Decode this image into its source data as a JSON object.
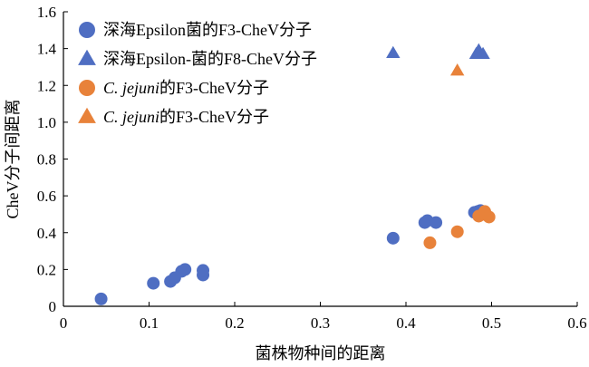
{
  "chart_data": {
    "type": "scatter",
    "xlabel": "菌株物种间的距离",
    "ylabel": "CheV分子间距离",
    "xlim": [
      0,
      0.6
    ],
    "ylim": [
      0,
      1.6
    ],
    "x_ticks": [
      "0",
      "0.1",
      "0.2",
      "0.3",
      "0.4",
      "0.5",
      "0.6"
    ],
    "y_ticks": [
      "0",
      "0.2",
      "0.4",
      "0.6",
      "0.8",
      "1.0",
      "1.2",
      "1.4",
      "1.6"
    ],
    "grid": false,
    "legend_position": "top-left",
    "series": [
      {
        "name": "深海Epsilon菌的F3-CheV分子",
        "marker": "circle",
        "color": "#4F6EC2",
        "points": [
          [
            0.044,
            0.04
          ],
          [
            0.105,
            0.125
          ],
          [
            0.125,
            0.135
          ],
          [
            0.13,
            0.155
          ],
          [
            0.138,
            0.19
          ],
          [
            0.142,
            0.2
          ],
          [
            0.163,
            0.17
          ],
          [
            0.163,
            0.195
          ],
          [
            0.385,
            0.37
          ],
          [
            0.422,
            0.455
          ],
          [
            0.425,
            0.465
          ],
          [
            0.435,
            0.455
          ],
          [
            0.48,
            0.51
          ],
          [
            0.484,
            0.515
          ],
          [
            0.487,
            0.52
          ],
          [
            0.49,
            0.505
          ],
          [
            0.492,
            0.51
          ]
        ]
      },
      {
        "name": "深海Epsilon-菌的F8-CheV分子",
        "marker": "triangle",
        "color": "#4F6EC2",
        "points": [
          [
            0.385,
            1.375
          ],
          [
            0.482,
            1.37
          ],
          [
            0.485,
            1.39
          ],
          [
            0.49,
            1.37
          ]
        ]
      },
      {
        "name_prefix": "C. jejuni",
        "name_suffix": "的F3-CheV分子",
        "marker": "circle",
        "color": "#E8823A",
        "points": [
          [
            0.428,
            0.345
          ],
          [
            0.46,
            0.405
          ],
          [
            0.485,
            0.49
          ],
          [
            0.49,
            0.5
          ],
          [
            0.492,
            0.515
          ],
          [
            0.497,
            0.485
          ]
        ]
      },
      {
        "name_prefix": "C. jejuni",
        "name_suffix": "的F3-CheV分子",
        "marker": "triangle",
        "color": "#E8823A",
        "points": [
          [
            0.46,
            1.28
          ]
        ]
      }
    ]
  }
}
